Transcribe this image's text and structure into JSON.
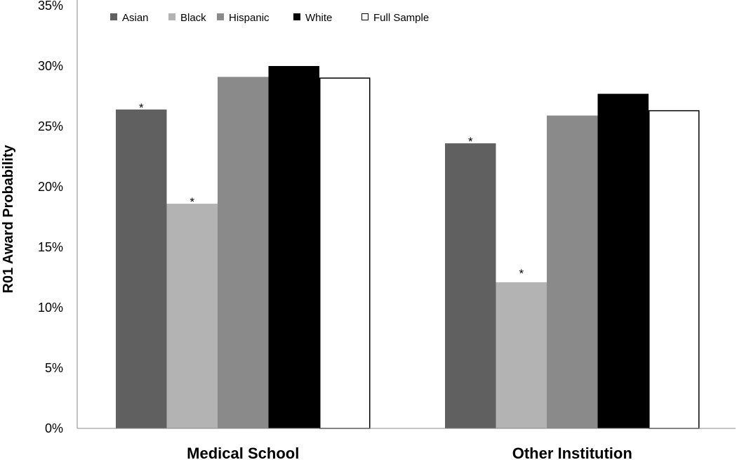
{
  "chart_data": {
    "type": "bar",
    "title": "",
    "xlabel": "",
    "ylabel": "R01 Award Probability",
    "ylim": [
      0,
      35
    ],
    "yticks": [
      "0%",
      "5%",
      "10%",
      "15%",
      "20%",
      "25%",
      "30%",
      "35%"
    ],
    "categories": [
      "Medical School",
      "Other Institution"
    ],
    "legend_position": "top-left",
    "series": [
      {
        "name": "Asian",
        "color": "#606060",
        "outline": "#606060",
        "values": [
          26.4,
          23.6
        ],
        "markers": [
          "*",
          "*"
        ]
      },
      {
        "name": "Black",
        "color": "#b3b3b3",
        "outline": "#b3b3b3",
        "values": [
          18.6,
          12.1
        ],
        "markers": [
          "*",
          "*"
        ]
      },
      {
        "name": "Hispanic",
        "color": "#8a8a8a",
        "outline": "#8a8a8a",
        "values": [
          29.1,
          25.9
        ],
        "markers": [
          "",
          ""
        ]
      },
      {
        "name": "White",
        "color": "#000000",
        "outline": "#000000",
        "values": [
          30.0,
          27.7
        ],
        "markers": [
          "",
          ""
        ]
      },
      {
        "name": "Full Sample",
        "color": "#ffffff",
        "outline": "#000000",
        "values": [
          29.0,
          26.3
        ],
        "markers": [
          "",
          ""
        ]
      }
    ]
  }
}
